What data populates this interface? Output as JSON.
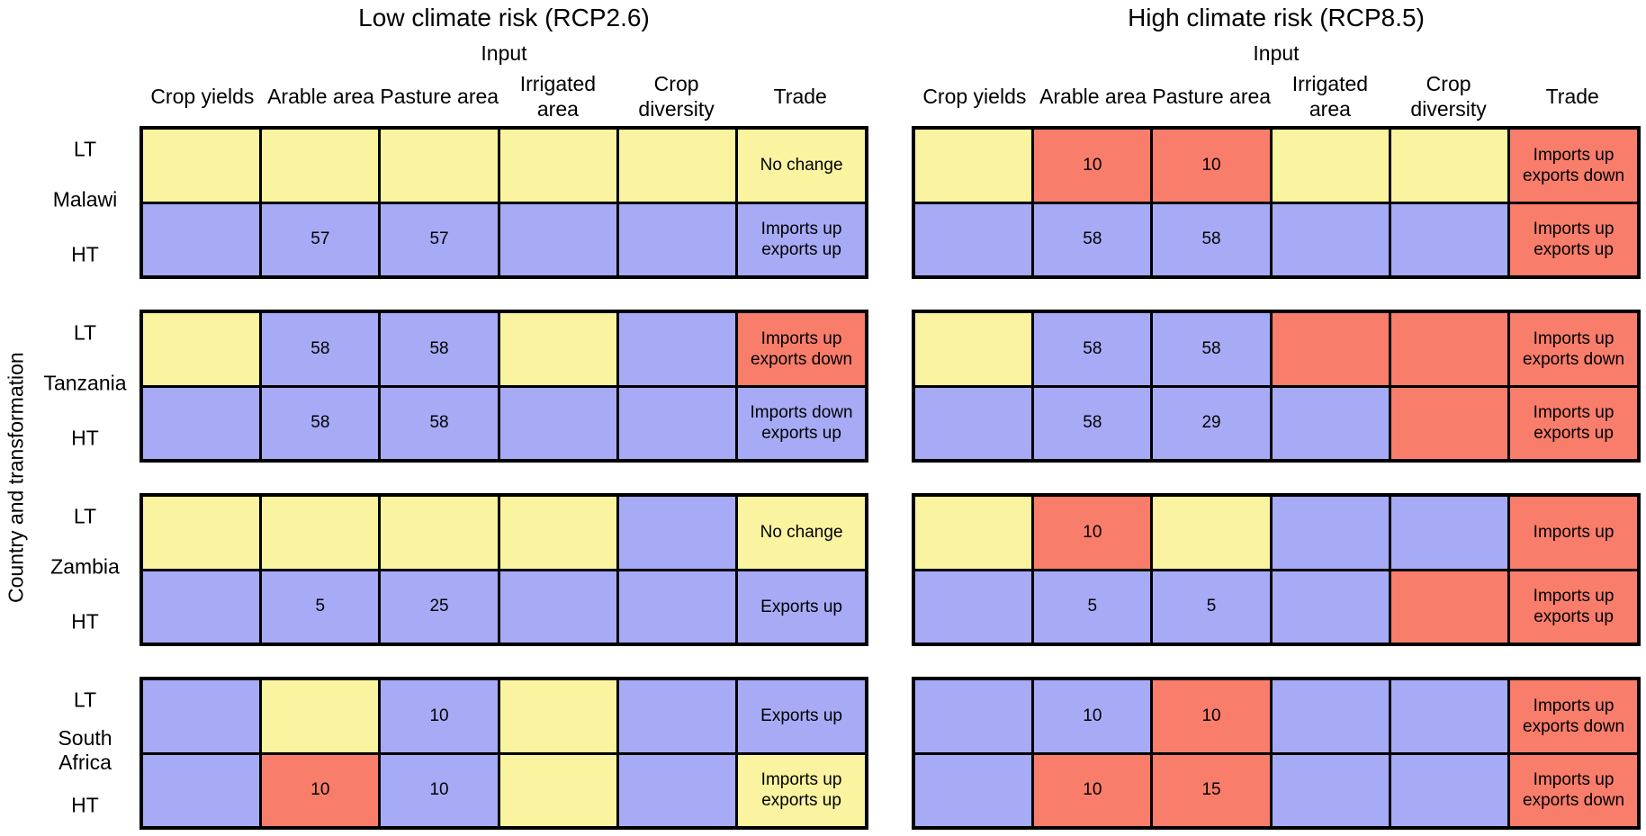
{
  "chart_data": {
    "type": "heatmap",
    "ylabel": "Country and transformation",
    "input_label": "Input",
    "columns": [
      "Crop yields",
      "Arable area",
      "Pasture area",
      "Irrigated area",
      "Crop diversity",
      "Trade"
    ],
    "color_legend": {
      "yellow": "#FAF3A0",
      "blue": "#A7ABF6",
      "red": "#F97D6B"
    },
    "panels": [
      {
        "title": "Low climate risk (RCP2.6)",
        "countries": [
          {
            "name": "Malawi",
            "rows": [
              {
                "transformation": "LT",
                "cells": [
                  {
                    "color": "yellow",
                    "value": ""
                  },
                  {
                    "color": "yellow",
                    "value": ""
                  },
                  {
                    "color": "yellow",
                    "value": ""
                  },
                  {
                    "color": "yellow",
                    "value": ""
                  },
                  {
                    "color": "yellow",
                    "value": ""
                  }
                ],
                "trade": {
                  "color": "yellow",
                  "text": "No change"
                }
              },
              {
                "transformation": "HT",
                "cells": [
                  {
                    "color": "blue",
                    "value": ""
                  },
                  {
                    "color": "blue",
                    "value": "57"
                  },
                  {
                    "color": "blue",
                    "value": "57"
                  },
                  {
                    "color": "blue",
                    "value": ""
                  },
                  {
                    "color": "blue",
                    "value": ""
                  }
                ],
                "trade": {
                  "color": "blue",
                  "text": "Imports up\nexports up"
                }
              }
            ]
          },
          {
            "name": "Tanzania",
            "rows": [
              {
                "transformation": "LT",
                "cells": [
                  {
                    "color": "yellow",
                    "value": ""
                  },
                  {
                    "color": "blue",
                    "value": "58"
                  },
                  {
                    "color": "blue",
                    "value": "58"
                  },
                  {
                    "color": "yellow",
                    "value": ""
                  },
                  {
                    "color": "blue",
                    "value": ""
                  }
                ],
                "trade": {
                  "color": "red",
                  "text": "Imports up\nexports down"
                }
              },
              {
                "transformation": "HT",
                "cells": [
                  {
                    "color": "blue",
                    "value": ""
                  },
                  {
                    "color": "blue",
                    "value": "58"
                  },
                  {
                    "color": "blue",
                    "value": "58"
                  },
                  {
                    "color": "blue",
                    "value": ""
                  },
                  {
                    "color": "blue",
                    "value": ""
                  }
                ],
                "trade": {
                  "color": "blue",
                  "text": "Imports down\nexports up"
                }
              }
            ]
          },
          {
            "name": "Zambia",
            "rows": [
              {
                "transformation": "LT",
                "cells": [
                  {
                    "color": "yellow",
                    "value": ""
                  },
                  {
                    "color": "yellow",
                    "value": ""
                  },
                  {
                    "color": "yellow",
                    "value": ""
                  },
                  {
                    "color": "yellow",
                    "value": ""
                  },
                  {
                    "color": "blue",
                    "value": ""
                  }
                ],
                "trade": {
                  "color": "yellow",
                  "text": "No change"
                }
              },
              {
                "transformation": "HT",
                "cells": [
                  {
                    "color": "blue",
                    "value": ""
                  },
                  {
                    "color": "blue",
                    "value": "5"
                  },
                  {
                    "color": "blue",
                    "value": "25"
                  },
                  {
                    "color": "blue",
                    "value": ""
                  },
                  {
                    "color": "blue",
                    "value": ""
                  }
                ],
                "trade": {
                  "color": "blue",
                  "text": "Exports up"
                }
              }
            ]
          },
          {
            "name": "South Africa",
            "rows": [
              {
                "transformation": "LT",
                "cells": [
                  {
                    "color": "blue",
                    "value": ""
                  },
                  {
                    "color": "yellow",
                    "value": ""
                  },
                  {
                    "color": "blue",
                    "value": "10"
                  },
                  {
                    "color": "yellow",
                    "value": ""
                  },
                  {
                    "color": "blue",
                    "value": ""
                  }
                ],
                "trade": {
                  "color": "blue",
                  "text": "Exports up"
                }
              },
              {
                "transformation": "HT",
                "cells": [
                  {
                    "color": "blue",
                    "value": ""
                  },
                  {
                    "color": "red",
                    "value": "10"
                  },
                  {
                    "color": "blue",
                    "value": "10"
                  },
                  {
                    "color": "yellow",
                    "value": ""
                  },
                  {
                    "color": "blue",
                    "value": ""
                  }
                ],
                "trade": {
                  "color": "yellow",
                  "text": "Imports up\nexports up"
                }
              }
            ]
          }
        ]
      },
      {
        "title": "High climate risk (RCP8.5)",
        "countries": [
          {
            "name": "Malawi",
            "rows": [
              {
                "transformation": "LT",
                "cells": [
                  {
                    "color": "yellow",
                    "value": ""
                  },
                  {
                    "color": "red",
                    "value": "10"
                  },
                  {
                    "color": "red",
                    "value": "10"
                  },
                  {
                    "color": "yellow",
                    "value": ""
                  },
                  {
                    "color": "yellow",
                    "value": ""
                  }
                ],
                "trade": {
                  "color": "red",
                  "text": "Imports up\nexports down"
                }
              },
              {
                "transformation": "HT",
                "cells": [
                  {
                    "color": "blue",
                    "value": ""
                  },
                  {
                    "color": "blue",
                    "value": "58"
                  },
                  {
                    "color": "blue",
                    "value": "58"
                  },
                  {
                    "color": "blue",
                    "value": ""
                  },
                  {
                    "color": "blue",
                    "value": ""
                  }
                ],
                "trade": {
                  "color": "red",
                  "text": "Imports up\nexports up"
                }
              }
            ]
          },
          {
            "name": "Tanzania",
            "rows": [
              {
                "transformation": "LT",
                "cells": [
                  {
                    "color": "yellow",
                    "value": ""
                  },
                  {
                    "color": "blue",
                    "value": "58"
                  },
                  {
                    "color": "blue",
                    "value": "58"
                  },
                  {
                    "color": "red",
                    "value": ""
                  },
                  {
                    "color": "red",
                    "value": ""
                  }
                ],
                "trade": {
                  "color": "red",
                  "text": "Imports up\nexports down"
                }
              },
              {
                "transformation": "HT",
                "cells": [
                  {
                    "color": "blue",
                    "value": ""
                  },
                  {
                    "color": "blue",
                    "value": "58"
                  },
                  {
                    "color": "blue",
                    "value": "29"
                  },
                  {
                    "color": "blue",
                    "value": ""
                  },
                  {
                    "color": "red",
                    "value": ""
                  }
                ],
                "trade": {
                  "color": "red",
                  "text": "Imports up\nexports up"
                }
              }
            ]
          },
          {
            "name": "Zambia",
            "rows": [
              {
                "transformation": "LT",
                "cells": [
                  {
                    "color": "yellow",
                    "value": ""
                  },
                  {
                    "color": "red",
                    "value": "10"
                  },
                  {
                    "color": "yellow",
                    "value": ""
                  },
                  {
                    "color": "blue",
                    "value": ""
                  },
                  {
                    "color": "blue",
                    "value": ""
                  }
                ],
                "trade": {
                  "color": "red",
                  "text": "Imports up"
                }
              },
              {
                "transformation": "HT",
                "cells": [
                  {
                    "color": "blue",
                    "value": ""
                  },
                  {
                    "color": "blue",
                    "value": "5"
                  },
                  {
                    "color": "blue",
                    "value": "5"
                  },
                  {
                    "color": "blue",
                    "value": ""
                  },
                  {
                    "color": "red",
                    "value": ""
                  }
                ],
                "trade": {
                  "color": "red",
                  "text": "Imports up\nexports up"
                }
              }
            ]
          },
          {
            "name": "South Africa",
            "rows": [
              {
                "transformation": "LT",
                "cells": [
                  {
                    "color": "blue",
                    "value": ""
                  },
                  {
                    "color": "blue",
                    "value": "10"
                  },
                  {
                    "color": "red",
                    "value": "10"
                  },
                  {
                    "color": "blue",
                    "value": ""
                  },
                  {
                    "color": "blue",
                    "value": ""
                  }
                ],
                "trade": {
                  "color": "red",
                  "text": "Imports up\nexports down"
                }
              },
              {
                "transformation": "HT",
                "cells": [
                  {
                    "color": "blue",
                    "value": ""
                  },
                  {
                    "color": "red",
                    "value": "10"
                  },
                  {
                    "color": "red",
                    "value": "15"
                  },
                  {
                    "color": "blue",
                    "value": ""
                  },
                  {
                    "color": "blue",
                    "value": ""
                  }
                ],
                "trade": {
                  "color": "red",
                  "text": "Imports up\nexports down"
                }
              }
            ]
          }
        ]
      }
    ]
  }
}
